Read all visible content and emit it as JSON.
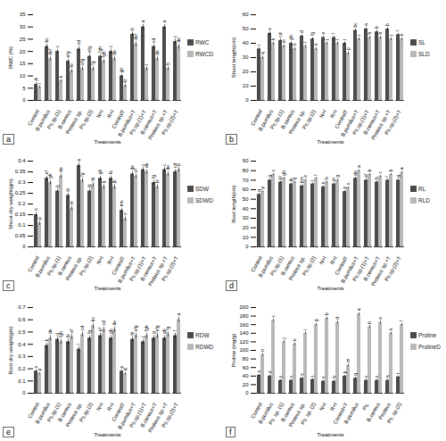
{
  "chart_data": [
    {
      "type": "bar",
      "title": "a",
      "x_label": "Treatments",
      "y_label": "RWC (%)",
      "categories": [
        "Control",
        "B.pumilus",
        "Ps.sp.(1)",
        "B.cereus",
        "Proteus sp.",
        "Ps.sp.(2)",
        "N+I",
        "R+I",
        "ControlT",
        "B.pumilus+T",
        "Ps.sp.(1)+T",
        "B.cereus+T",
        "Proteus sp.+T",
        "Ps.sp.(2)+T"
      ],
      "series": [
        {
          "name": "RWC",
          "color": "#4a4a4a",
          "values": [
            6.5,
            22,
            20,
            16,
            21,
            18,
            18,
            20,
            10,
            27,
            30,
            22,
            30,
            24
          ],
          "errors": [
            0.8,
            1,
            0.8,
            0.8,
            1,
            0.8,
            0.8,
            1,
            0.6,
            1,
            1,
            0.8,
            1,
            1
          ],
          "letters": [
            "jk",
            "bc",
            "c",
            "efg",
            "cd",
            "efg",
            "fgh",
            "c",
            "gh",
            "b",
            "a",
            "cd",
            "a",
            "c"
          ]
        },
        {
          "name": "RWCD",
          "color": "#b8b8b8",
          "values": [
            5.5,
            17,
            8,
            12,
            13,
            13,
            16,
            17,
            6,
            23,
            13,
            17,
            13,
            22
          ],
          "errors": [
            0.6,
            0.8,
            0.6,
            0.8,
            0.8,
            0.8,
            0.8,
            0.8,
            0.6,
            1,
            0.8,
            0.8,
            0.8,
            1
          ],
          "letters": [
            "l",
            "def",
            "k",
            "hi",
            "efg",
            "fg",
            "fgh",
            "de",
            "kl",
            "def",
            "i",
            "de",
            "h",
            "de"
          ]
        }
      ],
      "ylim": [
        0,
        35
      ],
      "yticks": [
        0,
        5,
        10,
        15,
        20,
        25,
        30,
        35
      ],
      "grid": false,
      "legend": "right"
    },
    {
      "type": "bar",
      "title": "b",
      "x_label": "Treatments",
      "y_label": "Shoot length(cm)",
      "categories": [
        "Control",
        "B.pumilus",
        "Ps.sp.(1)",
        "B.cereus",
        "Proteus sp.",
        "Ps.sp.(2)",
        "N+I",
        "R+I",
        "ControlT",
        "B.pumilus+T",
        "Ps.sp.(1)+T",
        "B.cereus+T",
        "Proteus sp.+T",
        "Ps.sp.(2)+T"
      ],
      "series": [
        {
          "name": "SL",
          "color": "#4a4a4a",
          "values": [
            36,
            47,
            42,
            40,
            45,
            43,
            44,
            44,
            40,
            49,
            50,
            48,
            50,
            46
          ],
          "errors": [
            1,
            1,
            1,
            1,
            1,
            1,
            1,
            1,
            1,
            1,
            1,
            1,
            1,
            1
          ],
          "letters": [
            "i",
            "e",
            "cd",
            "gh",
            "d",
            "fg",
            "e",
            "f",
            "i",
            "bc",
            "a",
            "b",
            "b",
            "f"
          ]
        },
        {
          "name": "SLD",
          "color": "#b8b8b8",
          "values": [
            30,
            40,
            38,
            36,
            38,
            36,
            40,
            40,
            33,
            43,
            44,
            44,
            43,
            43
          ],
          "errors": [
            1,
            1,
            1,
            1,
            1,
            1,
            1,
            1,
            1,
            1,
            1,
            1,
            1,
            1
          ],
          "letters": [
            "q",
            "k",
            "m",
            "n",
            "l",
            "n",
            "j",
            "l",
            "p",
            "i",
            "h",
            "h",
            "j",
            "k"
          ]
        }
      ],
      "ylim": [
        0,
        60
      ],
      "yticks": [
        0,
        10,
        20,
        30,
        40,
        50,
        60
      ],
      "grid": false,
      "legend": "right"
    },
    {
      "type": "bar",
      "title": "c",
      "x_label": "Treatments",
      "y_label": "Shoot dry weight(gm)",
      "categories": [
        "Control",
        "B.pumilus",
        "Ps.sp.(1)",
        "B.cereus",
        "Proteus sp.",
        "Ps.sp.(2)",
        "N+I",
        "R+I",
        "ControlT",
        "B.pumilus+T",
        "Ps.sp.(1)+T",
        "B.cereus+T",
        "Proteus sp.+T",
        "Ps.sp.(2)+T"
      ],
      "series": [
        {
          "name": "SDW",
          "color": "#4a4a4a",
          "values": [
            0.15,
            0.32,
            0.26,
            0.24,
            0.38,
            0.26,
            0.32,
            0.32,
            0.17,
            0.34,
            0.36,
            0.3,
            0.36,
            0.35
          ],
          "errors": [
            0.01,
            0.01,
            0.01,
            0.01,
            0.01,
            0.01,
            0.01,
            0.01,
            0.01,
            0.01,
            0.01,
            0.01,
            0.01,
            0.01
          ],
          "letters": [
            "o",
            "ef",
            "ij",
            "kl",
            "a",
            "jk",
            "gh",
            "hi",
            "mn",
            "de",
            "c",
            "fg",
            "c",
            "cd"
          ]
        },
        {
          "name": "SDWD",
          "color": "#b8b8b8",
          "values": [
            0.11,
            0.3,
            0.33,
            0.18,
            0.31,
            0.29,
            0.28,
            0.28,
            0.13,
            0.33,
            0.35,
            0.28,
            0.34,
            0.36
          ],
          "errors": [
            0.01,
            0.01,
            0.01,
            0.01,
            0.01,
            0.01,
            0.01,
            0.01,
            0.01,
            0.01,
            0.01,
            0.01,
            0.01,
            0.01
          ],
          "letters": [
            "p",
            "gh",
            "de",
            "m",
            "fg",
            "hi",
            "ij",
            "jk",
            "o",
            "ef",
            "de",
            "kl",
            "de",
            "b"
          ]
        }
      ],
      "ylim": [
        0,
        0.4
      ],
      "yticks": [
        0,
        0.05,
        0.1,
        0.15,
        0.2,
        0.25,
        0.3,
        0.35,
        0.4
      ],
      "grid": false,
      "legend": "right"
    },
    {
      "type": "bar",
      "title": "d",
      "x_label": "Treatments",
      "y_label": "Root length(cm)",
      "categories": [
        "Control",
        "B.pumilus",
        "Ps.sp.(1)",
        "B.cereus",
        "Proteus sp.",
        "Ps.sp.(2)",
        "N+I",
        "R+I",
        "ControlT",
        "B.pumilus+T",
        "Ps.sp.(1)+T",
        "B.cereus+T",
        "Proteus sp.+T",
        "Ps.sp.(2)+T"
      ],
      "series": [
        {
          "name": "RL",
          "color": "#4a4a4a",
          "values": [
            55,
            70,
            68,
            66,
            64,
            66,
            63,
            66,
            58,
            72,
            70,
            68,
            70,
            70
          ],
          "errors": [
            1,
            1,
            1,
            1,
            1,
            1,
            1,
            1,
            1,
            1,
            1,
            1,
            1,
            1
          ],
          "letters": [
            "q",
            "g",
            "kl",
            "jk",
            "mn",
            "l",
            "n",
            "m",
            "p",
            "de",
            "ef",
            "h",
            "f",
            "g"
          ]
        },
        {
          "name": "RLD",
          "color": "#b8b8b8",
          "values": [
            58,
            76,
            72,
            68,
            70,
            72,
            68,
            70,
            62,
            80,
            76,
            74,
            76,
            78
          ],
          "errors": [
            1,
            1,
            1,
            1,
            1,
            1,
            1,
            1,
            1,
            1,
            1,
            1,
            1,
            1
          ],
          "letters": [
            "p",
            "c",
            "gh",
            "ij",
            "e",
            "f",
            "h",
            "g",
            "o",
            "a",
            "b",
            "c",
            "b",
            "a"
          ]
        }
      ],
      "ylim": [
        0,
        90
      ],
      "yticks": [
        0,
        10,
        20,
        30,
        40,
        50,
        60,
        70,
        80,
        90
      ],
      "grid": false,
      "legend": "right"
    },
    {
      "type": "bar",
      "title": "e",
      "x_label": "Treatments",
      "y_label": "Root dry weight(gm)",
      "categories": [
        "Control",
        "B.pumilus",
        "Ps.sp.(1)",
        "B.cereus",
        "Proteus sp.",
        "Ps.sp.(2)",
        "N+I",
        "R+I",
        "ControlT",
        "B.pumilus+T",
        "Ps.sp.(1)+T",
        "B.cereus+T",
        "Proteus sp.+T",
        "Ps.sp.(2)+T"
      ],
      "series": [
        {
          "name": "RDW",
          "color": "#4a4a4a",
          "values": [
            0.18,
            0.39,
            0.44,
            0.42,
            0.36,
            0.45,
            0.47,
            0.45,
            0.18,
            0.44,
            0.42,
            0.45,
            0.45,
            0.47
          ],
          "errors": [
            0.01,
            0.02,
            0.02,
            0.02,
            0.02,
            0.02,
            0.02,
            0.02,
            0.01,
            0.02,
            0.02,
            0.02,
            0.02,
            0.02
          ],
          "letters": [
            "o",
            "k",
            "ij",
            "hi",
            "l",
            "fg",
            "ef",
            "gh",
            "p",
            "hi",
            "j",
            "g",
            "gh",
            "f"
          ]
        },
        {
          "name": "RDWD",
          "color": "#b8b8b8",
          "values": [
            0.16,
            0.45,
            0.42,
            0.46,
            0.48,
            0.55,
            0.52,
            0.52,
            0.16,
            0.47,
            0.47,
            0.47,
            0.48,
            0.6
          ],
          "errors": [
            0.01,
            0.02,
            0.02,
            0.02,
            0.02,
            0.02,
            0.02,
            0.02,
            0.01,
            0.02,
            0.02,
            0.02,
            0.02,
            0.02
          ],
          "letters": [
            "p",
            "de",
            "fgh",
            "ef",
            "cd",
            "bc",
            "cd",
            "de",
            "q",
            "efg",
            "fgh",
            "efg",
            "fg",
            "a"
          ]
        }
      ],
      "ylim": [
        0,
        0.7
      ],
      "yticks": [
        0,
        0.1,
        0.2,
        0.3,
        0.4,
        0.5,
        0.6,
        0.7
      ],
      "grid": false,
      "legend": "right"
    },
    {
      "type": "bar",
      "title": "f",
      "x_label": "Treatments",
      "y_label": "Proline (mg/g)",
      "categories": [
        "Control",
        "B.pumilus",
        "Ps. sp. (1)",
        "B.cereus",
        "Proteus sp.",
        "Ps. sp. (2)",
        "N+I",
        "R+I",
        "Control+T",
        "B.pumilus",
        "Ps.",
        "B.cereus",
        "Proteus",
        "Ps. sp.(2)"
      ],
      "series": [
        {
          "name": "Proline",
          "color": "#4a4a4a",
          "values": [
            42,
            40,
            30,
            30,
            35,
            32,
            28,
            28,
            40,
            35,
            30,
            30,
            30,
            38
          ],
          "errors": [
            2,
            2,
            2,
            2,
            2,
            2,
            2,
            2,
            2,
            2,
            2,
            2,
            2,
            2
          ],
          "letters": [
            "o",
            "u",
            "y",
            "v",
            "s",
            "t",
            "x",
            "w",
            "p",
            "q",
            "v",
            "x",
            "w",
            "r"
          ]
        },
        {
          "name": "ProlineD",
          "color": "#b8b8b8",
          "values": [
            90,
            170,
            120,
            115,
            140,
            160,
            175,
            165,
            65,
            185,
            155,
            165,
            140,
            160
          ],
          "errors": [
            3,
            3,
            3,
            3,
            3,
            3,
            3,
            3,
            3,
            3,
            3,
            3,
            3,
            3
          ],
          "letters": [
            "n",
            "c",
            "j",
            "k",
            "i",
            "g",
            "b",
            "d",
            "m",
            "a",
            "h",
            "e",
            "k",
            "f"
          ]
        }
      ],
      "ylim": [
        0,
        200
      ],
      "yticks": [
        0,
        20,
        40,
        60,
        80,
        100,
        120,
        140,
        160,
        180,
        200
      ],
      "grid": false,
      "legend": "right"
    }
  ]
}
